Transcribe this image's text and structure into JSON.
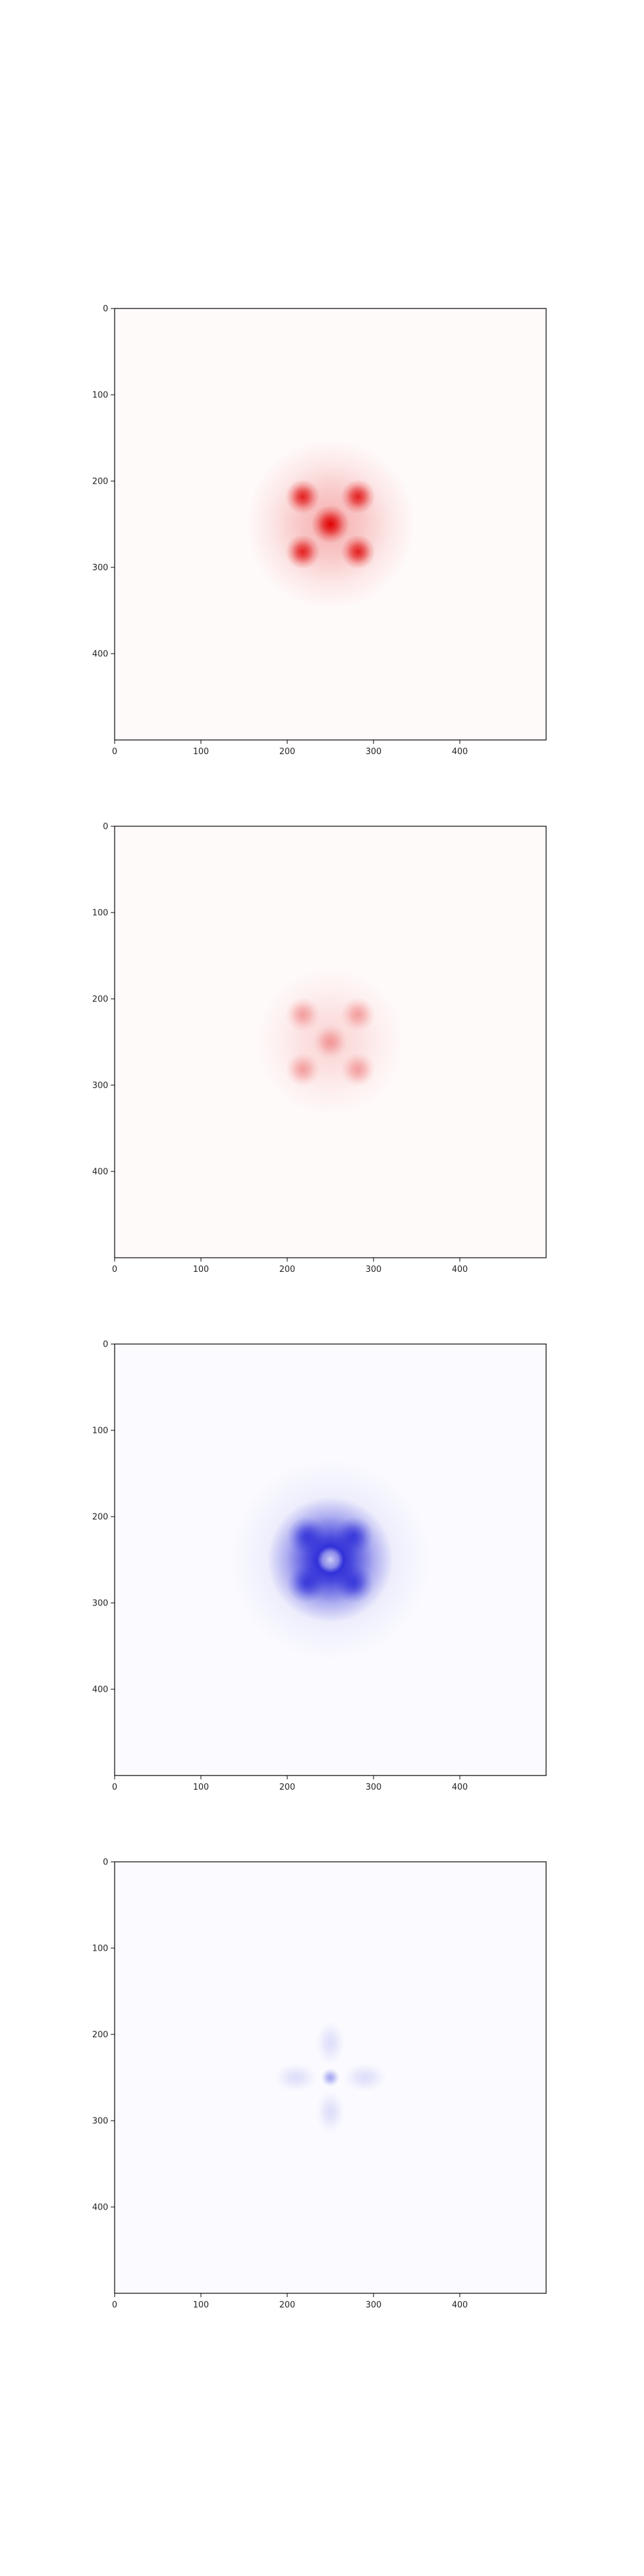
{
  "figure": {
    "background": "#ffffff"
  },
  "chart_data": [
    {
      "type": "heatmap",
      "title": "",
      "xlabel": "",
      "ylabel": "",
      "xlim": [
        0,
        500
      ],
      "ylim": [
        500,
        0
      ],
      "xticks": [
        0,
        100,
        200,
        300,
        400
      ],
      "yticks": [
        0,
        100,
        200,
        300,
        400
      ],
      "colormap": "white-to-red",
      "color": "#e00000",
      "grid": false,
      "blobs": [
        {
          "x": 250,
          "y": 250,
          "sx": 10,
          "sy": 10,
          "intensity": 1.0
        },
        {
          "x": 218,
          "y": 218,
          "sx": 9,
          "sy": 9,
          "intensity": 0.85
        },
        {
          "x": 282,
          "y": 218,
          "sx": 9,
          "sy": 9,
          "intensity": 0.85
        },
        {
          "x": 218,
          "y": 282,
          "sx": 9,
          "sy": 9,
          "intensity": 0.85
        },
        {
          "x": 282,
          "y": 282,
          "sx": 9,
          "sy": 9,
          "intensity": 0.85
        },
        {
          "x": 250,
          "y": 250,
          "sx": 45,
          "sy": 45,
          "intensity": 0.3
        }
      ]
    },
    {
      "type": "heatmap",
      "title": "",
      "xlabel": "",
      "ylabel": "",
      "xlim": [
        0,
        500
      ],
      "ylim": [
        500,
        0
      ],
      "xticks": [
        0,
        100,
        200,
        300,
        400
      ],
      "yticks": [
        0,
        100,
        200,
        300,
        400
      ],
      "colormap": "white-to-red",
      "color": "#e00000",
      "grid": false,
      "blobs": [
        {
          "x": 250,
          "y": 250,
          "sx": 9,
          "sy": 9,
          "intensity": 0.3
        },
        {
          "x": 218,
          "y": 218,
          "sx": 9,
          "sy": 9,
          "intensity": 0.32
        },
        {
          "x": 282,
          "y": 218,
          "sx": 9,
          "sy": 9,
          "intensity": 0.32
        },
        {
          "x": 218,
          "y": 282,
          "sx": 9,
          "sy": 9,
          "intensity": 0.32
        },
        {
          "x": 282,
          "y": 282,
          "sx": 9,
          "sy": 9,
          "intensity": 0.32
        },
        {
          "x": 250,
          "y": 250,
          "sx": 40,
          "sy": 40,
          "intensity": 0.15
        }
      ]
    },
    {
      "type": "heatmap",
      "title": "",
      "xlabel": "",
      "ylabel": "",
      "xlim": [
        0,
        500
      ],
      "ylim": [
        500,
        0
      ],
      "xticks": [
        0,
        100,
        200,
        300,
        400
      ],
      "yticks": [
        0,
        100,
        200,
        300,
        400
      ],
      "colormap": "white-to-blue",
      "color": "#0000d0",
      "grid": false,
      "blobs": [
        {
          "x": 250,
          "y": 250,
          "sx": 33,
          "sy": 33,
          "intensity": 0.95
        },
        {
          "x": 222,
          "y": 222,
          "sx": 10,
          "sy": 10,
          "intensity": 0.55
        },
        {
          "x": 278,
          "y": 222,
          "sx": 10,
          "sy": 10,
          "intensity": 0.55
        },
        {
          "x": 222,
          "y": 278,
          "sx": 10,
          "sy": 10,
          "intensity": 0.55
        },
        {
          "x": 278,
          "y": 278,
          "sx": 10,
          "sy": 10,
          "intensity": 0.55
        },
        {
          "x": 250,
          "y": 250,
          "sx": 55,
          "sy": 55,
          "intensity": 0.15
        },
        {
          "x": 250,
          "y": 250,
          "sx": 7,
          "sy": 7,
          "intensity": -0.8
        }
      ]
    },
    {
      "type": "heatmap",
      "title": "",
      "xlabel": "",
      "ylabel": "",
      "xlim": [
        0,
        500
      ],
      "ylim": [
        500,
        0
      ],
      "xticks": [
        0,
        100,
        200,
        300,
        400
      ],
      "yticks": [
        0,
        100,
        200,
        300,
        400
      ],
      "colormap": "white-to-blue",
      "color": "#0000d0",
      "grid": false,
      "blobs": [
        {
          "x": 250,
          "y": 250,
          "sx": 5,
          "sy": 5,
          "intensity": 0.35
        },
        {
          "x": 250,
          "y": 210,
          "sx": 8,
          "sy": 12,
          "intensity": 0.12
        },
        {
          "x": 250,
          "y": 290,
          "sx": 8,
          "sy": 12,
          "intensity": 0.12
        },
        {
          "x": 210,
          "y": 250,
          "sx": 12,
          "sy": 8,
          "intensity": 0.12
        },
        {
          "x": 290,
          "y": 250,
          "sx": 12,
          "sy": 8,
          "intensity": 0.12
        }
      ]
    }
  ]
}
